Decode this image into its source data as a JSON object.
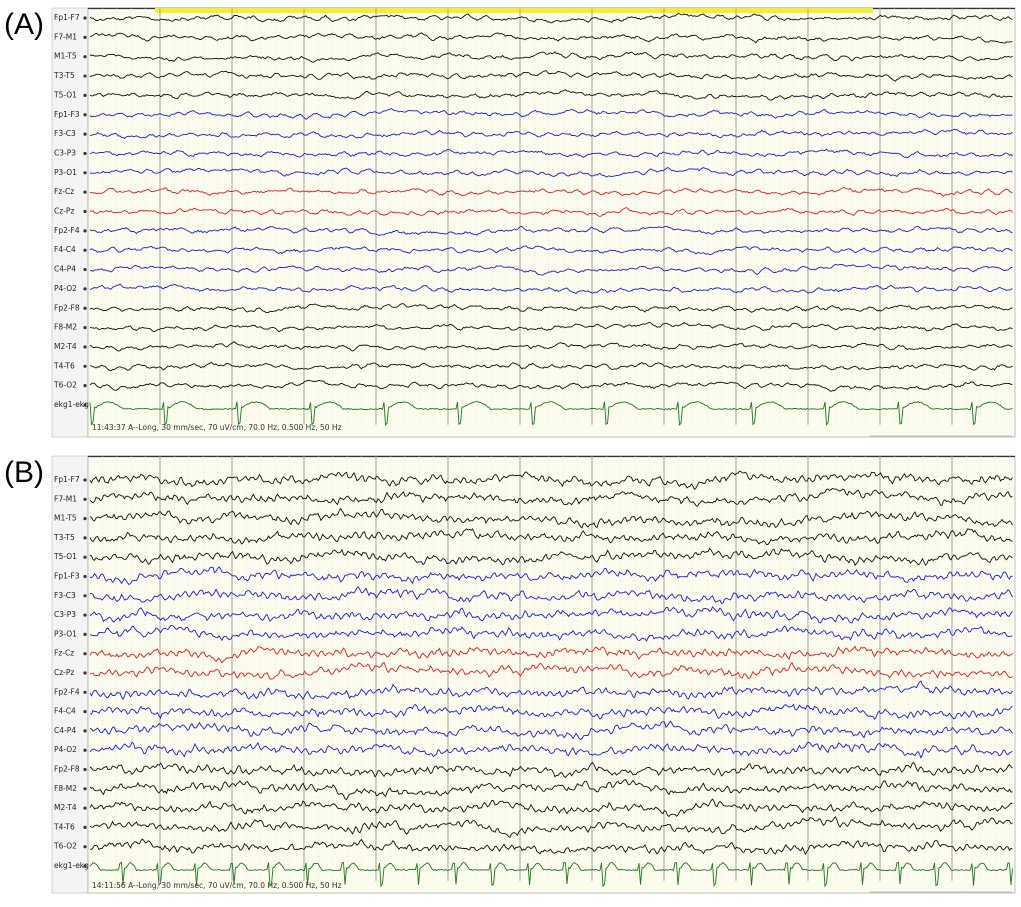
{
  "panels": [
    {
      "label": "(A)",
      "status": "11:43:37 A--Long, 30 mm/sec, 70 uV/cm, 70.0 Hz, 0.500 Hz, 50 Hz",
      "channels": [
        "Fp1-F7",
        "F7-M1",
        "M1-T5",
        "T3-T5",
        "T5-O1",
        "Fp1-F3",
        "F3-C3",
        "C3-P3",
        "P3-O1",
        "Fz-Cz",
        "Cz-Pz",
        "Fp2-F4",
        "F4-C4",
        "C4-P4",
        "P4-O2",
        "Fp2-F8",
        "F8-M2",
        "M2-T4",
        "T4-T6",
        "T6-O2",
        "ekg1-ekg"
      ]
    },
    {
      "label": "(B)",
      "status": "14:11:56 A--Long, 30 mm/sec, 70 uV/cm, 70.0 Hz, 0.500 Hz, 50 Hz",
      "channels": [
        "Fp1-F7",
        "F7-M1",
        "M1-T5",
        "T3-T5",
        "T5-O1",
        "Fp1-F3",
        "F3-C3",
        "C3-P3",
        "P3-O1",
        "Fz-Cz",
        "Cz-Pz",
        "Fp2-F4",
        "F4-C4",
        "C4-P4",
        "P4-O2",
        "Fp2-F8",
        "F8-M2",
        "M2-T4",
        "T4-T6",
        "T6-O2",
        "ekg1-ekg"
      ]
    }
  ]
}
